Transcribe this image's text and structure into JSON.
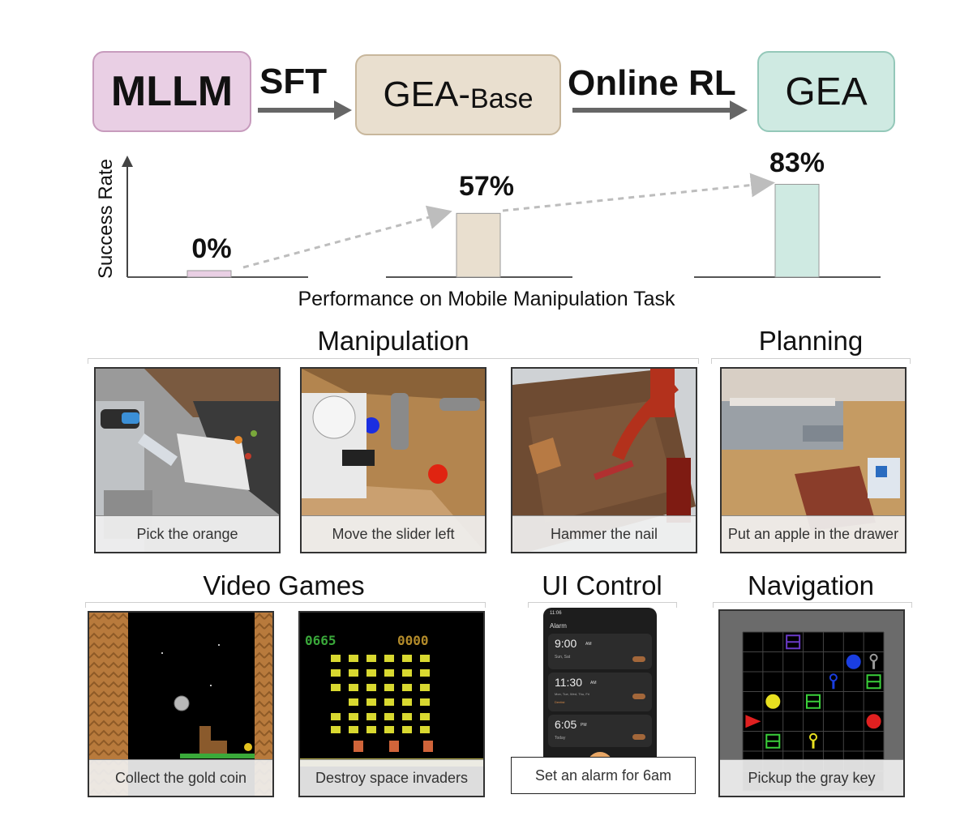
{
  "pipeline": {
    "stage1": "MLLM",
    "arrow1_label": "SFT",
    "stage2_main": "GEA-",
    "stage2_sub": "Base",
    "arrow2_label": "Online RL",
    "stage3": "GEA",
    "colors": {
      "mllm": "#e9cfe4",
      "gea_base": "#e9dfcf",
      "gea": "#cfeae2"
    }
  },
  "chart_data": {
    "type": "bar",
    "categories": [
      "MLLM",
      "GEA-Base",
      "GEA"
    ],
    "values": [
      0,
      57,
      83
    ],
    "value_labels": [
      "0%",
      "57%",
      "83%"
    ],
    "ylabel": "Success Rate",
    "xlabel": "Performance on Mobile Manipulation Task",
    "ylim": [
      0,
      100
    ],
    "colors": [
      "#e9cfe4",
      "#e9dfcf",
      "#cfeae2"
    ]
  },
  "sections": {
    "manipulation": "Manipulation",
    "planning": "Planning",
    "video_games": "Video Games",
    "ui_control": "UI Control",
    "navigation": "Navigation"
  },
  "captions": {
    "pick_orange": "Pick the orange",
    "move_slider": "Move the slider left",
    "hammer_nail": "Hammer the nail",
    "apple_drawer": "Put an apple in the drawer",
    "gold_coin": "Collect the gold coin",
    "space_invaders": "Destroy space invaders",
    "alarm": "Set an alarm for 6am",
    "gray_key": "Pickup the gray key"
  },
  "phone": {
    "status_time": "11:06",
    "app_title": "Alarm",
    "alarms": [
      {
        "time": "9:00",
        "ampm": "AM",
        "days": "Sun, Sat"
      },
      {
        "time": "11:30",
        "ampm": "AM",
        "days": "Mon, Tue, Wed, Thu, Fri",
        "note": "Dentist"
      },
      {
        "time": "6:05",
        "ampm": "PM",
        "days": "Today"
      }
    ]
  },
  "game": {
    "score_left": "0665",
    "score_right": "0000"
  }
}
